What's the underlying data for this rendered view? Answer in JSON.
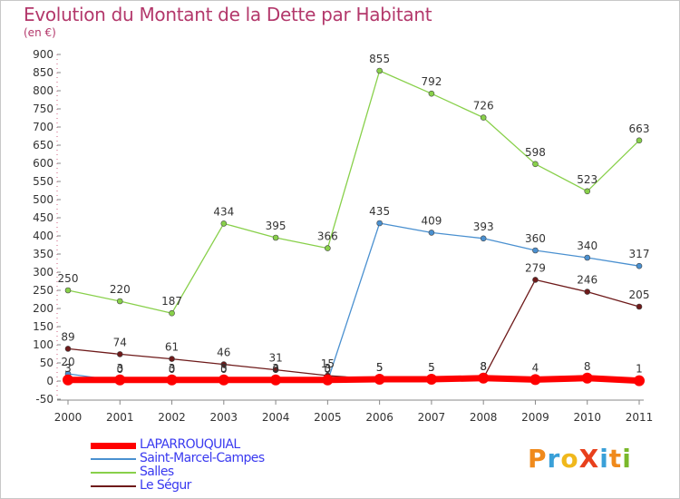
{
  "header": {
    "title": "Evolution du Montant de la Dette par Habitant",
    "subtitle": "(en €)"
  },
  "logo": {
    "text": "ProXiti",
    "letters": [
      "P",
      "r",
      "o",
      "X",
      "i",
      "t",
      "i"
    ],
    "colors": [
      "#f08a1c",
      "#3aa0d8",
      "#f0b81c",
      "#e8401c",
      "#3aa0d8",
      "#f08a1c",
      "#7ab82a"
    ]
  },
  "chart_data": {
    "type": "line",
    "title": "Evolution du Montant de la Dette par Habitant",
    "subtitle": "(en €)",
    "x": [
      "2000",
      "2001",
      "2002",
      "2003",
      "2004",
      "2005",
      "2006",
      "2007",
      "2008",
      "2009",
      "2010",
      "2011"
    ],
    "ylim": [
      -50,
      900
    ],
    "yticks": [
      -50,
      0,
      50,
      100,
      150,
      200,
      250,
      300,
      350,
      400,
      450,
      500,
      550,
      600,
      650,
      700,
      750,
      800,
      850,
      900
    ],
    "grid": false,
    "legend_position": "bottom-left",
    "series": [
      {
        "name": "Salles",
        "color": "#88d04a",
        "values": [
          250,
          220,
          187,
          434,
          395,
          366,
          855,
          792,
          726,
          598,
          523,
          663
        ]
      },
      {
        "name": "Saint-Marcel-Campes",
        "color": "#4a90d0",
        "values": [
          20,
          0,
          0,
          0,
          0,
          0,
          435,
          409,
          393,
          360,
          340,
          317
        ]
      },
      {
        "name": "Le Ségur",
        "color": "#6e1a1a",
        "values": [
          89,
          74,
          61,
          46,
          31,
          15,
          5,
          5,
          8,
          279,
          246,
          205
        ]
      },
      {
        "name": "LAPARROUQUIAL",
        "color": "#ff0000",
        "values": [
          3,
          3,
          3,
          3,
          3,
          3,
          5,
          5,
          8,
          4,
          8,
          1
        ]
      }
    ],
    "data_labels": {
      "Salles": [
        "250",
        "220",
        "187",
        "434",
        "395",
        "366",
        "855",
        "792",
        "726",
        "598",
        "523",
        "663"
      ],
      "Saint-Marcel-Campes": [
        "20",
        "0",
        "0",
        "0",
        "0",
        "0",
        "435",
        "409",
        "393",
        "360",
        "340",
        "317"
      ],
      "Le Ségur": [
        "89",
        "74",
        "61",
        "46",
        "31",
        "15",
        "5",
        "5",
        "8",
        "279",
        "246",
        "205"
      ],
      "LAPARROUQUIAL": [
        "3",
        "3",
        "3",
        "3",
        "3",
        "3",
        "5",
        "5",
        "8",
        "4",
        "8",
        "1"
      ]
    }
  },
  "legend": {
    "items": [
      {
        "name": "LAPARROUQUIAL",
        "color": "#ff0000"
      },
      {
        "name": "Saint-Marcel-Campes",
        "color": "#4a90d0"
      },
      {
        "name": "Salles",
        "color": "#88d04a"
      },
      {
        "name": "Le Ségur",
        "color": "#6e1a1a"
      }
    ]
  }
}
